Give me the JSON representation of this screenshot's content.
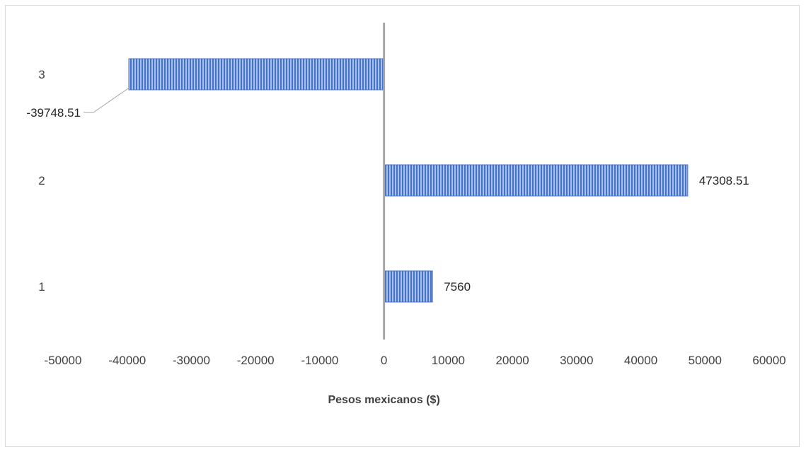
{
  "chart_data": {
    "type": "bar",
    "orientation": "horizontal",
    "categories": [
      "1",
      "2",
      "3"
    ],
    "values": [
      7560,
      47308.51,
      -39748.51
    ],
    "data_labels": [
      "7560",
      "47308.51",
      "-39748.51"
    ],
    "xlabel": "Pesos mexicanos ($)",
    "ylabel": "",
    "title": "",
    "xlim": [
      -50000,
      60000
    ],
    "x_ticks": [
      "-50000",
      "-40000",
      "-30000",
      "-20000",
      "-10000",
      "0",
      "10000",
      "20000",
      "30000",
      "40000",
      "50000",
      "60000"
    ],
    "grid": false,
    "legend": "none",
    "bar_fill": "#4472c4",
    "bar_fill_light": "#a9c0ea",
    "axis_color": "#a6a6a6",
    "frame_color": "#d9d9d9"
  }
}
